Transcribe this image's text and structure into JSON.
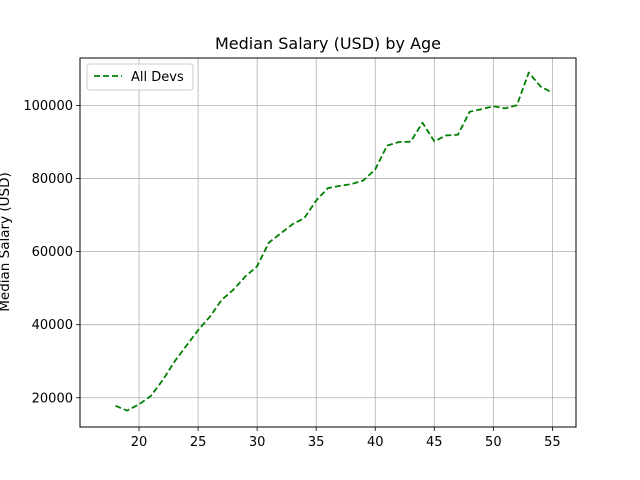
{
  "chart_data": {
    "type": "line",
    "title": "Median Salary (USD) by Age",
    "xlabel": "",
    "ylabel": "Median Salary (USD)",
    "xlim": [
      15,
      57
    ],
    "ylim": [
      12000,
      113000
    ],
    "xticks": [
      20,
      25,
      30,
      35,
      40,
      45,
      50,
      55
    ],
    "yticks": [
      20000,
      40000,
      60000,
      80000,
      100000
    ],
    "grid": true,
    "legend_position": "top-left",
    "series": [
      {
        "name": "All Devs",
        "color": "#008000",
        "line_style": "dashed",
        "x": [
          18,
          19,
          20,
          21,
          22,
          23,
          24,
          25,
          26,
          27,
          28,
          29,
          30,
          31,
          32,
          33,
          34,
          35,
          36,
          37,
          38,
          39,
          40,
          41,
          42,
          43,
          44,
          45,
          46,
          47,
          48,
          49,
          50,
          51,
          52,
          53,
          54,
          55
        ],
        "values": [
          17800,
          16500,
          18200,
          20500,
          24800,
          29900,
          34200,
          38500,
          42200,
          46800,
          49600,
          53200,
          56000,
          62500,
          65000,
          67500,
          69200,
          74000,
          77400,
          78000,
          78500,
          79500,
          82500,
          89000,
          90000,
          90100,
          95300,
          90200,
          91800,
          92000,
          98300,
          99000,
          99800,
          99200,
          100100,
          109000,
          105200,
          103500
        ]
      }
    ]
  },
  "colors": {
    "grid": "#b0b0b0",
    "axes": "#000000",
    "legend_border": "#cccccc"
  }
}
